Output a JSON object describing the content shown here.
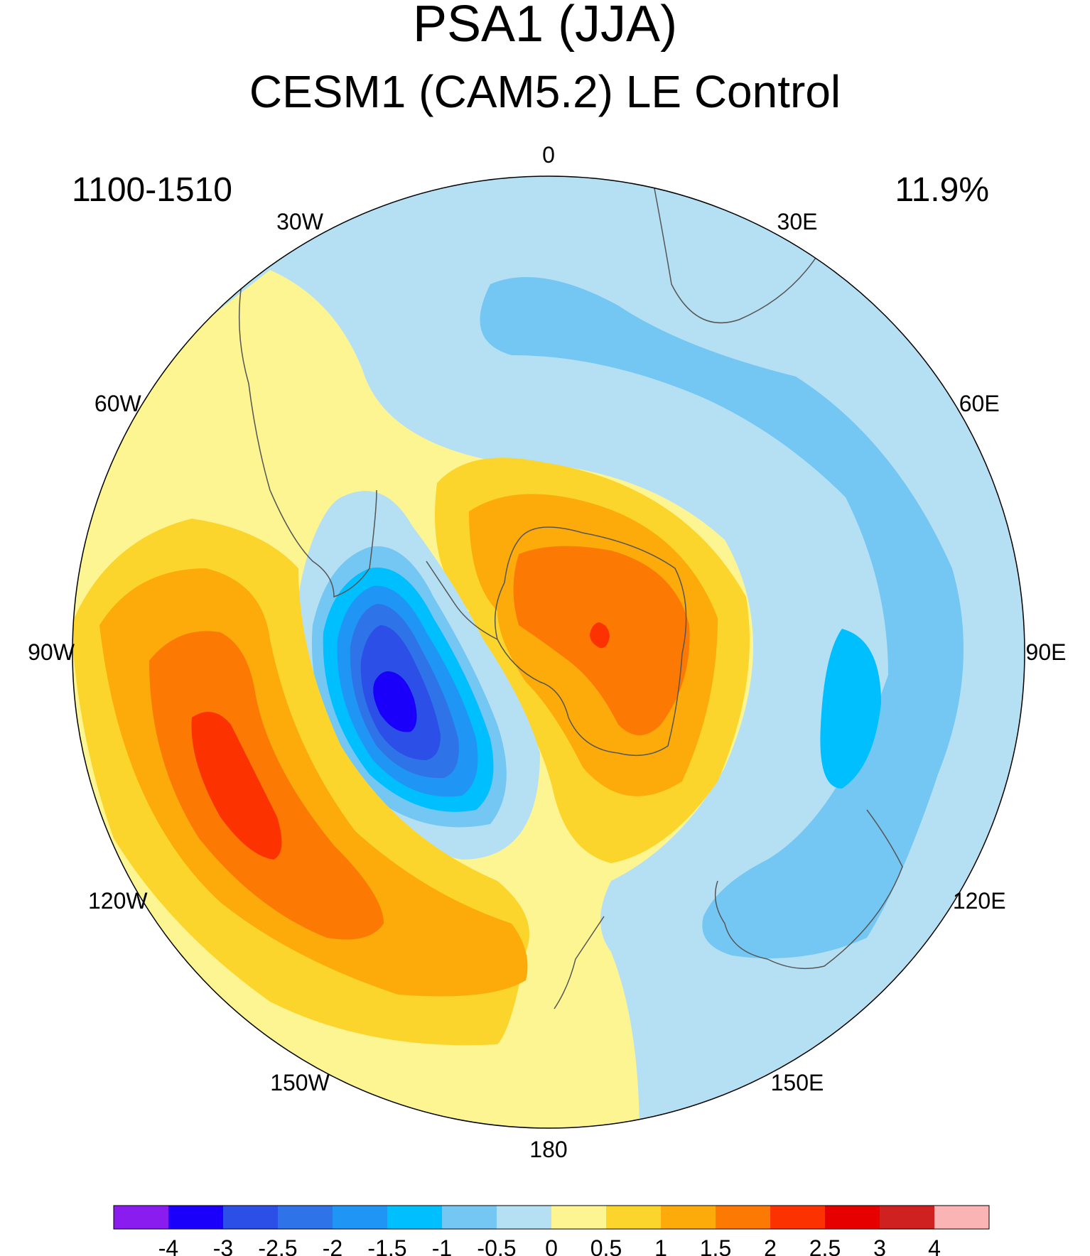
{
  "title": "PSA1 (JJA)",
  "subtitle": "CESM1 (CAM5.2) LE Control",
  "left_label": "1100-1510",
  "right_label": "11.9%",
  "longitude_labels": [
    "0",
    "30E",
    "60E",
    "90E",
    "120E",
    "150E",
    "180",
    "150W",
    "120W",
    "90W",
    "60W",
    "30W"
  ],
  "colorbar": {
    "colors": [
      "#8a1cf0",
      "#1a00fa",
      "#2c4fe8",
      "#2f73e8",
      "#1f96f5",
      "#00bfff",
      "#74c7f2",
      "#b5e0f4",
      "#fdf592",
      "#fcd52c",
      "#fcab0b",
      "#fc7a03",
      "#fc3300",
      "#e60000",
      "#d02121",
      "#fab4b4"
    ],
    "labels": [
      "-4",
      "-3",
      "-2.5",
      "-2",
      "-1.5",
      "-1",
      "-0.5",
      "0",
      "0.5",
      "1",
      "1.5",
      "2",
      "2.5",
      "3",
      "4"
    ]
  }
}
